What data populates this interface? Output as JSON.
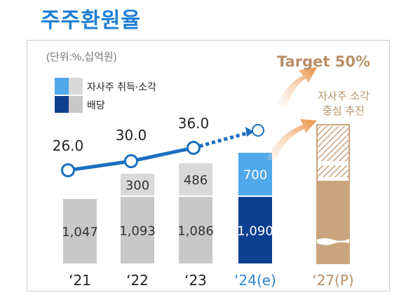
{
  "page": {
    "title": "주주환원율"
  },
  "chart_data": {
    "type": "bar",
    "unit_note": "(단위:%,십억원)",
    "categories": [
      "‘21",
      "‘22",
      "‘23",
      "‘24(e)",
      "‘27(P)"
    ],
    "series": [
      {
        "name": "배당",
        "values": [
          1047,
          1093,
          1086,
          1090,
          null
        ]
      },
      {
        "name": "자사주 취득·소각",
        "values": [
          null,
          300,
          486,
          700,
          null
        ]
      }
    ],
    "bar_labels": {
      "dividend": [
        "1,047",
        "1,093",
        "1,086",
        "1,090"
      ],
      "buyback": [
        "",
        "300",
        "486",
        "700"
      ]
    },
    "ratio_line": {
      "values": [
        26.0,
        30.0,
        36.0
      ],
      "labels": [
        "26.0",
        "30.0",
        "36.0"
      ],
      "projected_index": 3
    },
    "target": {
      "label": "Target 50%",
      "note_line1": "자사주 소각",
      "note_line2": "중심 추진"
    },
    "legend": {
      "buyback": "자사주 취득·소각",
      "dividend": "배당"
    },
    "colors": {
      "title": "#1f7fd4",
      "line": "#1a6fc0",
      "dividend_past": "#c8c8c8",
      "buyback_past": "#d9d9d9",
      "dividend_2024": "#0d3f8f",
      "buyback_2024": "#4ea8ea",
      "target": "#c9a47c",
      "target_text": "#b89068",
      "axis_2024": "#2e86d8"
    }
  }
}
